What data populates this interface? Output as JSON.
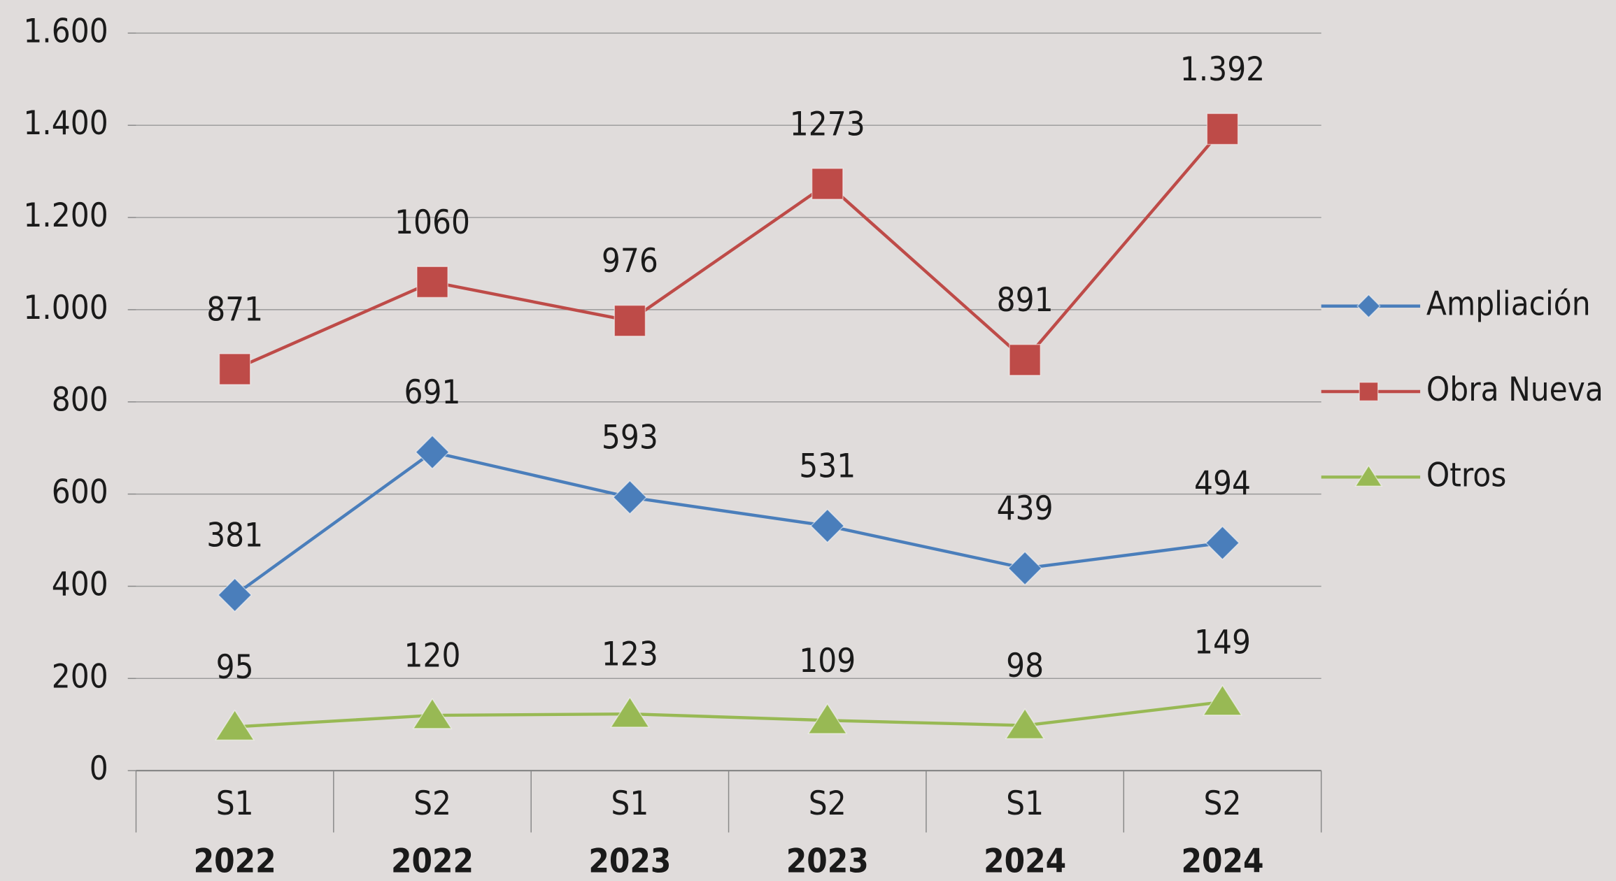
{
  "chart_data": {
    "type": "line",
    "categories": [
      "S1",
      "S2",
      "S1",
      "S2",
      "S1",
      "S2"
    ],
    "category_groups": [
      "2022",
      "2022",
      "2023",
      "2023",
      "2024",
      "2024"
    ],
    "series": [
      {
        "name": "Ampliación",
        "color": "#4a7ebb",
        "marker": "diamond",
        "values": [
          381,
          691,
          593,
          531,
          439,
          494
        ]
      },
      {
        "name": "Obra Nueva",
        "color": "#be4b48",
        "marker": "square",
        "values": [
          871,
          1060,
          976,
          1273,
          891,
          1392
        ],
        "value_labels": [
          "871",
          "1060",
          "976",
          "1273",
          "891",
          "1.392"
        ]
      },
      {
        "name": "Otros",
        "color": "#98b954",
        "marker": "triangle",
        "values": [
          95,
          120,
          123,
          109,
          98,
          149
        ]
      }
    ],
    "ylim": [
      0,
      1600
    ],
    "yticks": [
      0,
      200,
      400,
      600,
      800,
      {
        "value": 1000,
        "label": "1.000"
      },
      {
        "value": 1200,
        "label": "1.200"
      },
      {
        "value": 1400,
        "label": "1.400"
      },
      {
        "value": 1600,
        "label": "1.600"
      }
    ],
    "grid": true,
    "legend": "right"
  }
}
